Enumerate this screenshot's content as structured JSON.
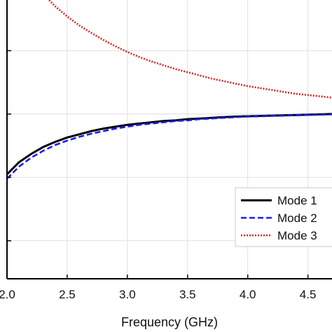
{
  "chart_data": {
    "type": "line",
    "title": "",
    "xlabel": "Frequency (GHz)",
    "ylabel": "",
    "xlim": [
      2.0,
      4.7
    ],
    "ylim": [
      0,
      4.4
    ],
    "x_ticks": [
      "2.0",
      "2.5",
      "3.0",
      "3.5",
      "4.0",
      "4.5"
    ],
    "x_tick_values": [
      2.0,
      2.5,
      3.0,
      3.5,
      4.0,
      4.5
    ],
    "y_ticks": [
      0.6,
      1.6,
      2.6,
      3.6
    ],
    "grid": true,
    "legend_position": "bottom-right",
    "x": [
      2.0,
      2.1,
      2.2,
      2.3,
      2.4,
      2.5,
      2.6,
      2.7,
      2.8,
      2.9,
      3.0,
      3.1,
      3.2,
      3.3,
      3.4,
      3.5,
      3.6,
      3.7,
      3.8,
      3.9,
      4.0,
      4.1,
      4.2,
      4.3,
      4.4,
      4.5,
      4.6,
      4.7
    ],
    "series": [
      {
        "name": "Mode 1",
        "color": "#000000",
        "style": "solid",
        "x": [
          2.0,
          2.1,
          2.2,
          2.3,
          2.4,
          2.5,
          2.6,
          2.7,
          2.8,
          2.9,
          3.0,
          3.1,
          3.2,
          3.3,
          3.4,
          3.5,
          3.6,
          3.7,
          3.8,
          3.9,
          4.0,
          4.1,
          4.2,
          4.3,
          4.4,
          4.5,
          4.6,
          4.7
        ],
        "values": [
          1.65,
          1.84,
          1.97,
          2.08,
          2.16,
          2.23,
          2.28,
          2.33,
          2.37,
          2.4,
          2.43,
          2.45,
          2.47,
          2.49,
          2.5,
          2.52,
          2.53,
          2.54,
          2.55,
          2.56,
          2.565,
          2.57,
          2.575,
          2.58,
          2.585,
          2.59,
          2.595,
          2.6
        ]
      },
      {
        "name": "Mode 2",
        "color": "#1a1aff",
        "style": "dashed",
        "x": [
          2.0,
          2.1,
          2.2,
          2.3,
          2.4,
          2.5,
          2.6,
          2.7,
          2.8,
          2.9,
          3.0,
          3.1,
          3.2,
          3.3,
          3.4,
          3.5,
          3.6,
          3.7,
          3.8,
          3.9,
          4.0,
          4.1,
          4.2,
          4.3,
          4.4,
          4.5,
          4.6,
          4.7
        ],
        "values": [
          1.58,
          1.77,
          1.91,
          2.02,
          2.11,
          2.18,
          2.24,
          2.29,
          2.33,
          2.37,
          2.4,
          2.43,
          2.45,
          2.47,
          2.49,
          2.5,
          2.52,
          2.53,
          2.54,
          2.55,
          2.56,
          2.565,
          2.57,
          2.575,
          2.58,
          2.585,
          2.59,
          2.595
        ]
      },
      {
        "name": "Mode 3",
        "color": "#e02020",
        "style": "dotted",
        "x": [
          2.35,
          2.4,
          2.5,
          2.6,
          2.7,
          2.8,
          2.9,
          3.0,
          3.1,
          3.2,
          3.3,
          3.4,
          3.5,
          3.6,
          3.7,
          3.8,
          3.9,
          4.0,
          4.1,
          4.2,
          4.3,
          4.4,
          4.5,
          4.6,
          4.7
        ],
        "values": [
          4.4,
          4.3,
          4.14,
          4.0,
          3.88,
          3.77,
          3.67,
          3.58,
          3.5,
          3.43,
          3.37,
          3.31,
          3.26,
          3.21,
          3.16,
          3.12,
          3.08,
          3.04,
          3.01,
          2.98,
          2.95,
          2.92,
          2.9,
          2.88,
          2.86
        ]
      }
    ]
  }
}
